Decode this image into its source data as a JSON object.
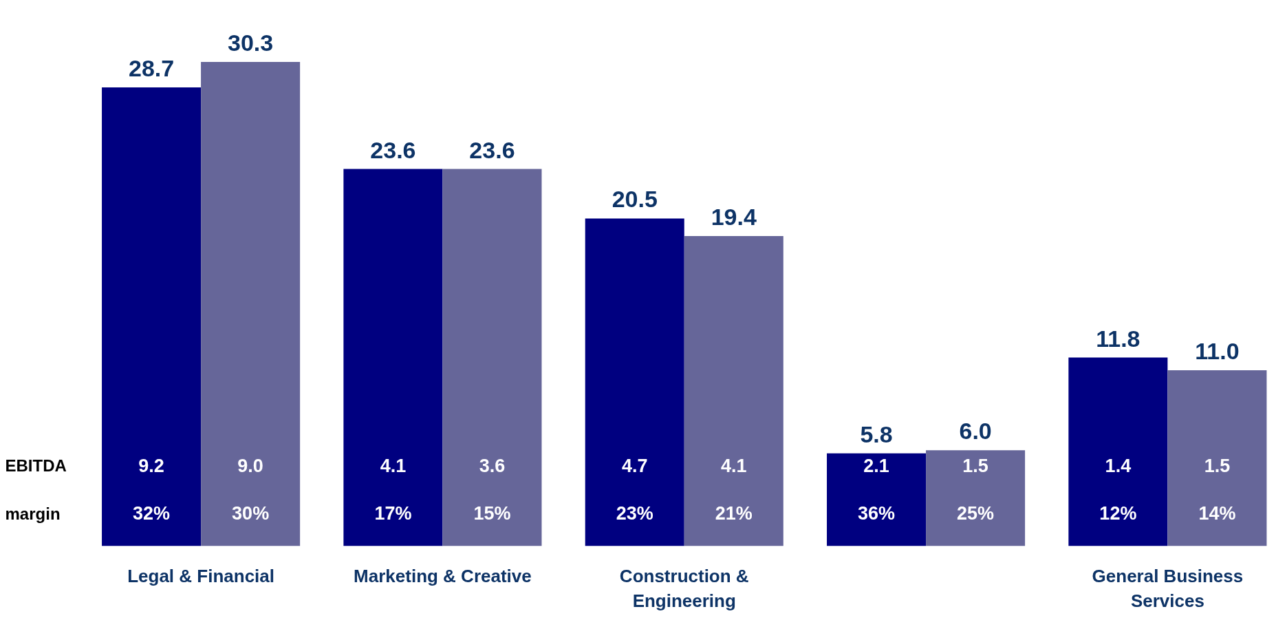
{
  "chart_data": {
    "type": "bar",
    "categories": [
      "Legal & Financial",
      "Marketing & Creative",
      "Construction & Engineering",
      null,
      "General Business Services"
    ],
    "series": [
      {
        "color": "#000080",
        "values": [
          28.7,
          23.6,
          20.5,
          5.8,
          11.8
        ],
        "value_labels": [
          "28.7",
          "23.6",
          "20.5",
          "5.8",
          "11.8"
        ]
      },
      {
        "color": "#666699",
        "values": [
          30.3,
          23.6,
          19.4,
          6.0,
          11.0
        ],
        "value_labels": [
          "30.3",
          "23.6",
          "19.4",
          "6.0",
          "11.0"
        ]
      }
    ],
    "grid": false,
    "annotations": [
      "EBITDA",
      "margin",
      "9.2",
      "32%",
      "9.0",
      "30%",
      "4.1",
      "17%",
      "3.6",
      "15%",
      "4.7",
      "23%",
      "4.1",
      "21%",
      "2.1",
      "36%",
      "1.5",
      "25%",
      "1.4",
      "12%",
      "1.5",
      "14%"
    ]
  }
}
